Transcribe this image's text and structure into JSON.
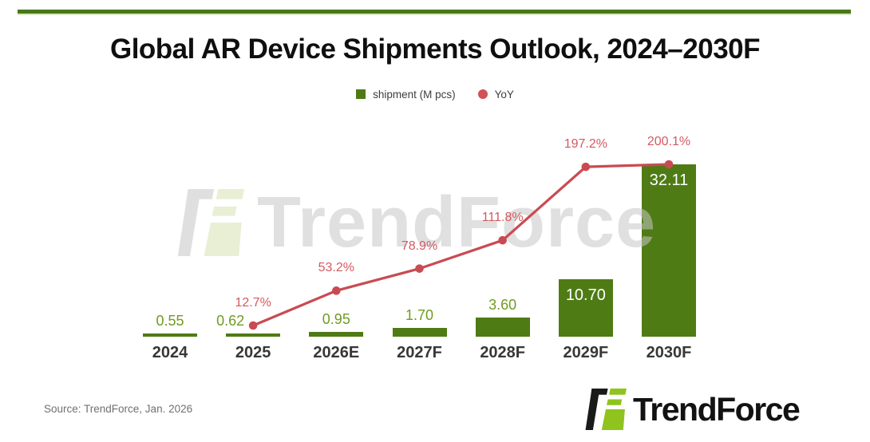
{
  "header": {
    "title": "Global AR Device Shipments Outlook, 2024–2030F"
  },
  "legend": {
    "items": [
      {
        "label": "shipment (M pcs)",
        "swatch": "square",
        "color": "#4f7b15"
      },
      {
        "label": "YoY",
        "swatch": "circle",
        "color": "#d05156"
      }
    ]
  },
  "chart_data": {
    "type": "bar",
    "title": "Global AR Device Shipments Outlook, 2024–2030F",
    "categories": [
      "2024",
      "2025",
      "2026E",
      "2027F",
      "2028F",
      "2029F",
      "2030F"
    ],
    "series": [
      {
        "name": "shipment (M pcs)",
        "chart_type": "bar",
        "values": [
          0.55,
          0.62,
          0.95,
          1.7,
          3.6,
          10.7,
          32.11
        ],
        "labels": [
          "0.55",
          "0.62",
          "0.95",
          "1.70",
          "3.60",
          "10.70",
          "32.11"
        ],
        "color": "#4f7b15"
      },
      {
        "name": "YoY",
        "chart_type": "line",
        "values": [
          null,
          12.7,
          53.2,
          78.9,
          111.8,
          197.2,
          200.1
        ],
        "labels": [
          null,
          "12.7%",
          "53.2%",
          "78.9%",
          "111.8%",
          "197.2%",
          "200.1%"
        ],
        "color": "#c94b52"
      }
    ],
    "xlabel": "",
    "ylabel": "",
    "y_left_range": [
      0,
      33
    ],
    "y_right_range": [
      0,
      210
    ],
    "grid": false,
    "axes_visible": false,
    "legend_position": "top"
  },
  "watermark": {
    "text": "TrendForce"
  },
  "footer": {
    "source": "Source: TrendForce, Jan. 2026",
    "logo_text": "TrendForce"
  },
  "colors": {
    "top_rule": "#48771c",
    "bar_green": "#4f7b15",
    "value_label_green": "#6f9c1f",
    "line_red": "#c94b52",
    "yoy_label_red": "#d5595f",
    "brand_green": "#8fc31e",
    "brand_black": "#1a1a1a"
  }
}
